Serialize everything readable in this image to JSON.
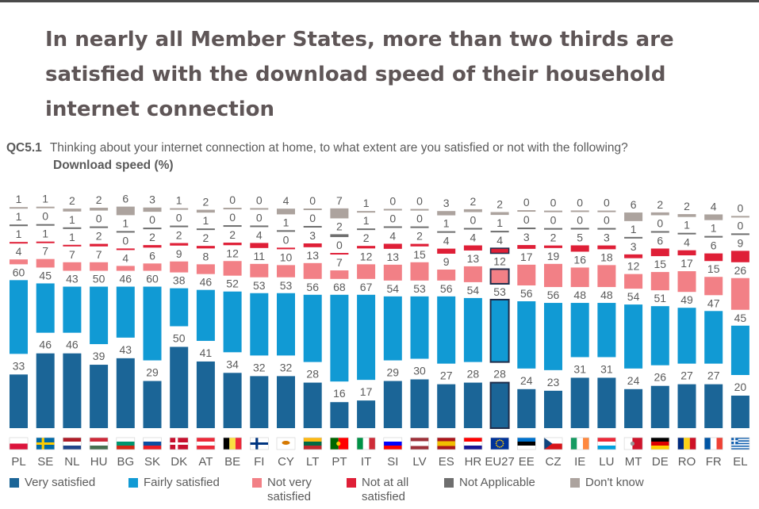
{
  "title": "In nearly all Member States, more than two thirds are satisfied with the download speed of their household internet connection",
  "question": {
    "code": "QC5.1",
    "text": "Thinking about your internet connection at home, to what extent are you satisfied or not with the following?",
    "subtitle": "Download speed  (%)"
  },
  "colors": {
    "very_satisfied": "#1b6597",
    "fairly_satisfied": "#119ad4",
    "not_very_satisfied": "#f28086",
    "not_at_all_satisfied": "#df1f37",
    "not_applicable": "#6e6e6e",
    "dont_know": "#aca39e"
  },
  "legend": [
    {
      "key": "very_satisfied",
      "label": "Very satisfied"
    },
    {
      "key": "fairly_satisfied",
      "label": "Fairly satisfied"
    },
    {
      "key": "not_very_satisfied",
      "label": "Not very\nsatisfied"
    },
    {
      "key": "not_at_all_satisfied",
      "label": "Not at all\nsatisfied"
    },
    {
      "key": "not_applicable",
      "label": "Not Applicable"
    },
    {
      "key": "dont_know",
      "label": "Don't know"
    }
  ],
  "chart_data": {
    "type": "bar",
    "stacked": true,
    "highlight": "EU27",
    "categories": [
      "PL",
      "SE",
      "NL",
      "HU",
      "BG",
      "SK",
      "DK",
      "AT",
      "BE",
      "FI",
      "CY",
      "LT",
      "PT",
      "IT",
      "SI",
      "LV",
      "ES",
      "HR",
      "EU27",
      "EE",
      "CZ",
      "IE",
      "LU",
      "MT",
      "DE",
      "RO",
      "FR",
      "EL"
    ],
    "series": [
      {
        "name": "Very satisfied",
        "key": "very_satisfied",
        "values": [
          33,
          46,
          46,
          39,
          43,
          29,
          50,
          41,
          34,
          32,
          32,
          28,
          16,
          17,
          29,
          30,
          27,
          28,
          28,
          24,
          23,
          31,
          31,
          24,
          26,
          27,
          27,
          20
        ]
      },
      {
        "name": "Fairly satisfied",
        "key": "fairly_satisfied",
        "values": [
          60,
          45,
          43,
          50,
          46,
          60,
          38,
          46,
          52,
          53,
          53,
          56,
          68,
          67,
          54,
          53,
          56,
          54,
          53,
          56,
          56,
          48,
          48,
          54,
          51,
          49,
          47,
          45
        ]
      },
      {
        "name": "Not very satisfied",
        "key": "not_very_satisfied",
        "values": [
          4,
          7,
          7,
          7,
          4,
          6,
          9,
          8,
          12,
          11,
          10,
          13,
          7,
          12,
          13,
          15,
          9,
          13,
          12,
          17,
          19,
          16,
          18,
          12,
          15,
          17,
          15,
          26
        ]
      },
      {
        "name": "Not at all satisfied",
        "key": "not_at_all_satisfied",
        "values": [
          1,
          1,
          1,
          2,
          0,
          2,
          2,
          2,
          2,
          4,
          0,
          3,
          0,
          2,
          4,
          2,
          4,
          4,
          4,
          3,
          2,
          5,
          3,
          3,
          6,
          4,
          6,
          9
        ]
      },
      {
        "name": "Not Applicable",
        "key": "not_applicable",
        "values": [
          1,
          0,
          1,
          0,
          1,
          0,
          0,
          1,
          0,
          0,
          1,
          0,
          2,
          1,
          0,
          0,
          1,
          0,
          1,
          0,
          0,
          0,
          0,
          1,
          0,
          1,
          1,
          0
        ]
      },
      {
        "name": "Don't know",
        "key": "dont_know",
        "values": [
          1,
          1,
          2,
          2,
          6,
          3,
          1,
          2,
          0,
          0,
          4,
          0,
          7,
          1,
          0,
          0,
          3,
          2,
          2,
          0,
          0,
          0,
          0,
          6,
          2,
          2,
          4,
          0
        ]
      }
    ],
    "flags": {
      "PL": {
        "type": "h",
        "colors": [
          "#ffffff",
          "#dc143c"
        ]
      },
      "SE": {
        "type": "nordic",
        "bg": "#006aa7",
        "cross": "#fecc00"
      },
      "NL": {
        "type": "h",
        "colors": [
          "#ae1c28",
          "#ffffff",
          "#21468b"
        ]
      },
      "HU": {
        "type": "h",
        "colors": [
          "#ce2939",
          "#ffffff",
          "#477050"
        ]
      },
      "BG": {
        "type": "h",
        "colors": [
          "#ffffff",
          "#00966e",
          "#d62612"
        ]
      },
      "SK": {
        "type": "h",
        "colors": [
          "#ffffff",
          "#0b4ea2",
          "#ee1c25"
        ]
      },
      "DK": {
        "type": "nordic",
        "bg": "#c8102e",
        "cross": "#ffffff"
      },
      "AT": {
        "type": "h",
        "colors": [
          "#ed2939",
          "#ffffff",
          "#ed2939"
        ]
      },
      "BE": {
        "type": "v",
        "colors": [
          "#000000",
          "#fae042",
          "#ed2939"
        ]
      },
      "FI": {
        "type": "nordic",
        "bg": "#ffffff",
        "cross": "#003580"
      },
      "CY": {
        "type": "solid",
        "colors": [
          "#ffffff"
        ],
        "mark": "#d57800"
      },
      "LT": {
        "type": "h",
        "colors": [
          "#fdb913",
          "#006a44",
          "#c1272d"
        ]
      },
      "PT": {
        "type": "vsplit",
        "colors": [
          "#006600",
          "#ff0000"
        ],
        "mark": "#ffcc00"
      },
      "IT": {
        "type": "v",
        "colors": [
          "#009246",
          "#ffffff",
          "#ce2b37"
        ]
      },
      "SI": {
        "type": "h",
        "colors": [
          "#ffffff",
          "#0000ff",
          "#ff0000"
        ]
      },
      "LV": {
        "type": "h3",
        "colors": [
          "#9e3039",
          "#ffffff",
          "#9e3039"
        ]
      },
      "ES": {
        "type": "h3",
        "colors": [
          "#aa151b",
          "#f1bf00",
          "#aa151b"
        ]
      },
      "HR": {
        "type": "h",
        "colors": [
          "#ff0000",
          "#ffffff",
          "#171796"
        ]
      },
      "EU27": {
        "type": "solid",
        "colors": [
          "#003399"
        ],
        "mark": "#ffcc00"
      },
      "EE": {
        "type": "h",
        "colors": [
          "#0072ce",
          "#000000",
          "#ffffff"
        ]
      },
      "CZ": {
        "type": "cz",
        "colors": [
          "#ffffff",
          "#d7141a",
          "#11457e"
        ]
      },
      "IE": {
        "type": "v",
        "colors": [
          "#169b62",
          "#ffffff",
          "#ff883e"
        ]
      },
      "LU": {
        "type": "h",
        "colors": [
          "#ed2939",
          "#ffffff",
          "#00a1de"
        ]
      },
      "MT": {
        "type": "vsplit",
        "colors": [
          "#ffffff",
          "#cf142b"
        ],
        "mark": "#999999"
      },
      "DE": {
        "type": "h",
        "colors": [
          "#000000",
          "#dd0000",
          "#ffce00"
        ]
      },
      "RO": {
        "type": "v",
        "colors": [
          "#002b7f",
          "#fcd116",
          "#ce1126"
        ]
      },
      "FR": {
        "type": "v",
        "colors": [
          "#0055a4",
          "#ffffff",
          "#ef4135"
        ]
      },
      "EL": {
        "type": "stripes",
        "colors": [
          "#0d5eaf",
          "#ffffff"
        ]
      }
    }
  }
}
